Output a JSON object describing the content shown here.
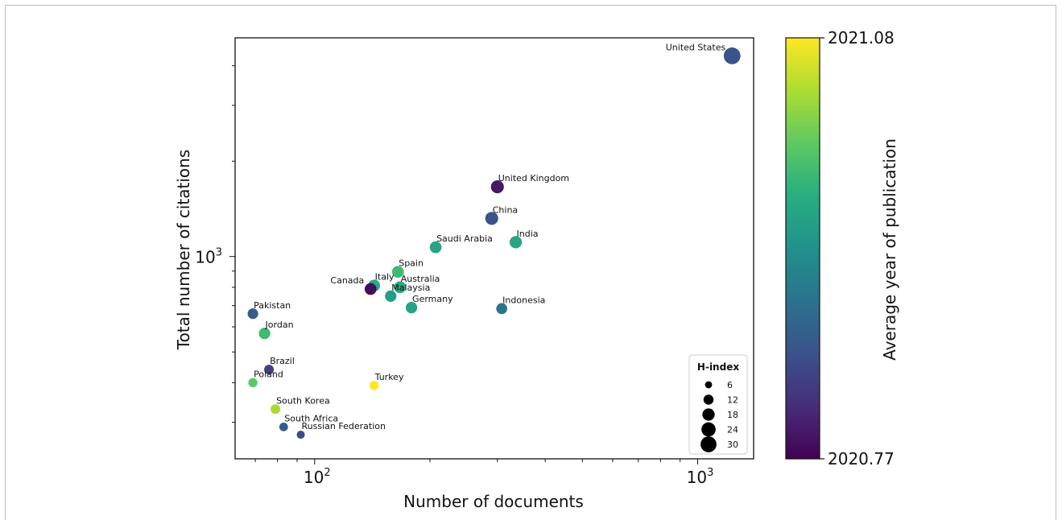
{
  "chart_data": {
    "type": "scatter",
    "xlabel": "Number of documents",
    "ylabel": "Total number of citations",
    "x_scale": "log",
    "y_scale": "log",
    "xlim": [
      62,
      1400
    ],
    "ylim": [
      230,
      4900
    ],
    "x_tick_labels": [
      {
        "value": 100,
        "label": "10²"
      },
      {
        "value": 1000,
        "label": "10³"
      }
    ],
    "y_tick_labels": [
      {
        "value": 1000,
        "label": "10³"
      }
    ],
    "grid": false,
    "colorbar": {
      "label": "Average year of publication",
      "min": 2020.77,
      "max": 2021.08,
      "min_label": "2020.77",
      "max_label": "2021.08",
      "colormap": "viridis"
    },
    "legend": {
      "title": "H-index",
      "position": "bottom-right",
      "items": [
        {
          "value": 6,
          "label": "6"
        },
        {
          "value": 12,
          "label": "12"
        },
        {
          "value": 18,
          "label": "18"
        },
        {
          "value": 24,
          "label": "24"
        },
        {
          "value": 30,
          "label": "30"
        }
      ]
    },
    "points": [
      {
        "label": "United States",
        "x": 1230,
        "y": 4300,
        "year": 2020.85,
        "h_index": 30
      },
      {
        "label": "United Kingdom",
        "x": 300,
        "y": 1660,
        "year": 2020.79,
        "h_index": 18
      },
      {
        "label": "China",
        "x": 290,
        "y": 1320,
        "year": 2020.85,
        "h_index": 18
      },
      {
        "label": "India",
        "x": 335,
        "y": 1110,
        "year": 2020.95,
        "h_index": 16
      },
      {
        "label": "Saudi Arabia",
        "x": 207,
        "y": 1070,
        "year": 2020.95,
        "h_index": 15
      },
      {
        "label": "Spain",
        "x": 165,
        "y": 895,
        "year": 2020.98,
        "h_index": 15
      },
      {
        "label": "Italy",
        "x": 143,
        "y": 810,
        "year": 2020.96,
        "h_index": 15
      },
      {
        "label": "Canada",
        "x": 140,
        "y": 790,
        "year": 2020.78,
        "h_index": 15
      },
      {
        "label": "Australia",
        "x": 167,
        "y": 800,
        "year": 2020.96,
        "h_index": 15
      },
      {
        "label": "Malaysia",
        "x": 158,
        "y": 750,
        "year": 2020.94,
        "h_index": 14
      },
      {
        "label": "Germany",
        "x": 179,
        "y": 690,
        "year": 2020.95,
        "h_index": 14
      },
      {
        "label": "Indonesia",
        "x": 308,
        "y": 685,
        "year": 2020.89,
        "h_index": 13
      },
      {
        "label": "Pakistan",
        "x": 69,
        "y": 660,
        "year": 2020.86,
        "h_index": 12
      },
      {
        "label": "Jordan",
        "x": 74,
        "y": 572,
        "year": 2020.98,
        "h_index": 14
      },
      {
        "label": "Brazil",
        "x": 76,
        "y": 440,
        "year": 2020.83,
        "h_index": 10
      },
      {
        "label": "Poland",
        "x": 69,
        "y": 400,
        "year": 2021.0,
        "h_index": 9
      },
      {
        "label": "Turkey",
        "x": 143,
        "y": 392,
        "year": 2021.08,
        "h_index": 9
      },
      {
        "label": "South Korea",
        "x": 79,
        "y": 330,
        "year": 2021.04,
        "h_index": 10
      },
      {
        "label": "South Africa",
        "x": 83,
        "y": 290,
        "year": 2020.86,
        "h_index": 8
      },
      {
        "label": "Russian Federation",
        "x": 92,
        "y": 274,
        "year": 2020.84,
        "h_index": 7
      }
    ]
  }
}
